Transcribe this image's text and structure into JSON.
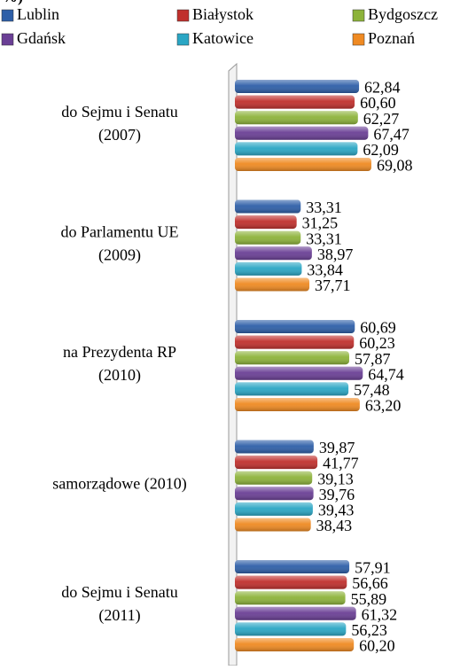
{
  "chart_data": {
    "type": "bar",
    "orientation": "horizontal",
    "title": "%)",
    "categories": [
      [
        "do Sejmu i Senatu",
        "(2007)"
      ],
      [
        "do Parlamentu UE",
        "(2009)"
      ],
      [
        "na Prezydenta RP",
        "(2010)"
      ],
      [
        "samorządowe (2010)"
      ],
      [
        "do Sejmu i Senatu",
        "(2011)"
      ]
    ],
    "xlim": [
      0,
      118
    ],
    "series": [
      {
        "name": "Lublin",
        "color": "#2e5fa8",
        "values": [
          62.84,
          33.31,
          60.69,
          39.87,
          57.91
        ],
        "value_labels": [
          "62,84",
          "33,31",
          "60,69",
          "39,87",
          "57,91"
        ]
      },
      {
        "name": "Białystok",
        "color": "#c0302d",
        "values": [
          60.6,
          31.25,
          60.23,
          41.77,
          56.66
        ],
        "value_labels": [
          "60,60",
          "31,25",
          "60,23",
          "41,77",
          "56,66"
        ]
      },
      {
        "name": "Bydgoszcz",
        "color": "#8db33a",
        "values": [
          62.27,
          33.31,
          57.87,
          39.13,
          55.89
        ],
        "value_labels": [
          "62,27",
          "33,31",
          "57,87",
          "39,13",
          "55,89"
        ]
      },
      {
        "name": "Gdańsk",
        "color": "#6a3f95",
        "values": [
          67.47,
          38.97,
          64.74,
          39.76,
          61.32
        ],
        "value_labels": [
          "67,47",
          "38,97",
          "64,74",
          "39,76",
          "61,32"
        ]
      },
      {
        "name": "Katowice",
        "color": "#2aa6c4",
        "values": [
          62.09,
          33.84,
          57.48,
          39.43,
          56.23
        ],
        "value_labels": [
          "62,09",
          "33,84",
          "57,48",
          "39,43",
          "56,23"
        ]
      },
      {
        "name": "Poznań",
        "color": "#ef8a22",
        "values": [
          69.08,
          37.71,
          63.2,
          38.43,
          60.2
        ],
        "value_labels": [
          "69,08",
          "37,71",
          "63,20",
          "38,43",
          "60,20"
        ]
      }
    ]
  }
}
